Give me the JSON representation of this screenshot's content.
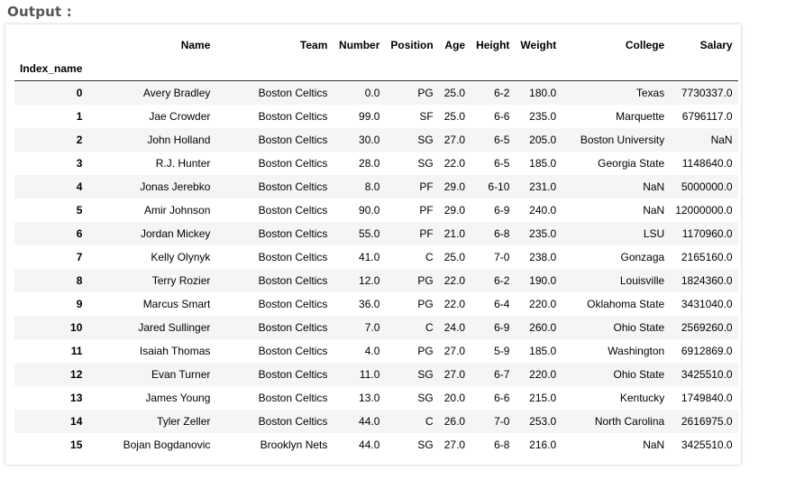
{
  "heading": "Output :",
  "table": {
    "columns": [
      "Name",
      "Team",
      "Number",
      "Position",
      "Age",
      "Height",
      "Weight",
      "College",
      "Salary"
    ],
    "index_name": "Index_name",
    "rows": [
      [
        "0",
        "Avery Bradley",
        "Boston Celtics",
        "0.0",
        "PG",
        "25.0",
        "6-2",
        "180.0",
        "Texas",
        "7730337.0"
      ],
      [
        "1",
        "Jae Crowder",
        "Boston Celtics",
        "99.0",
        "SF",
        "25.0",
        "6-6",
        "235.0",
        "Marquette",
        "6796117.0"
      ],
      [
        "2",
        "John Holland",
        "Boston Celtics",
        "30.0",
        "SG",
        "27.0",
        "6-5",
        "205.0",
        "Boston University",
        "NaN"
      ],
      [
        "3",
        "R.J. Hunter",
        "Boston Celtics",
        "28.0",
        "SG",
        "22.0",
        "6-5",
        "185.0",
        "Georgia State",
        "1148640.0"
      ],
      [
        "4",
        "Jonas Jerebko",
        "Boston Celtics",
        "8.0",
        "PF",
        "29.0",
        "6-10",
        "231.0",
        "NaN",
        "5000000.0"
      ],
      [
        "5",
        "Amir Johnson",
        "Boston Celtics",
        "90.0",
        "PF",
        "29.0",
        "6-9",
        "240.0",
        "NaN",
        "12000000.0"
      ],
      [
        "6",
        "Jordan Mickey",
        "Boston Celtics",
        "55.0",
        "PF",
        "21.0",
        "6-8",
        "235.0",
        "LSU",
        "1170960.0"
      ],
      [
        "7",
        "Kelly Olynyk",
        "Boston Celtics",
        "41.0",
        "C",
        "25.0",
        "7-0",
        "238.0",
        "Gonzaga",
        "2165160.0"
      ],
      [
        "8",
        "Terry Rozier",
        "Boston Celtics",
        "12.0",
        "PG",
        "22.0",
        "6-2",
        "190.0",
        "Louisville",
        "1824360.0"
      ],
      [
        "9",
        "Marcus Smart",
        "Boston Celtics",
        "36.0",
        "PG",
        "22.0",
        "6-4",
        "220.0",
        "Oklahoma State",
        "3431040.0"
      ],
      [
        "10",
        "Jared Sullinger",
        "Boston Celtics",
        "7.0",
        "C",
        "24.0",
        "6-9",
        "260.0",
        "Ohio State",
        "2569260.0"
      ],
      [
        "11",
        "Isaiah Thomas",
        "Boston Celtics",
        "4.0",
        "PG",
        "27.0",
        "5-9",
        "185.0",
        "Washington",
        "6912869.0"
      ],
      [
        "12",
        "Evan Turner",
        "Boston Celtics",
        "11.0",
        "SG",
        "27.0",
        "6-7",
        "220.0",
        "Ohio State",
        "3425510.0"
      ],
      [
        "13",
        "James Young",
        "Boston Celtics",
        "13.0",
        "SG",
        "20.0",
        "6-6",
        "215.0",
        "Kentucky",
        "1749840.0"
      ],
      [
        "14",
        "Tyler Zeller",
        "Boston Celtics",
        "44.0",
        "C",
        "26.0",
        "7-0",
        "253.0",
        "North Carolina",
        "2616975.0"
      ],
      [
        "15",
        "Bojan Bogdanovic",
        "Brooklyn Nets",
        "44.0",
        "SG",
        "27.0",
        "6-8",
        "216.0",
        "NaN",
        "3425510.0"
      ]
    ]
  }
}
